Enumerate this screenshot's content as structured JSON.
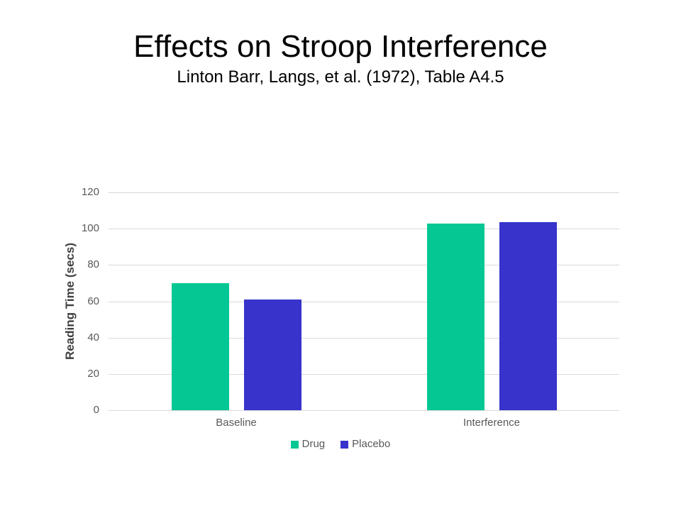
{
  "slide": {
    "title": "Effects on Stroop Interference",
    "subtitle": "Linton Barr, Langs, et al. (1972), Table A4.5"
  },
  "chart_data": {
    "type": "bar",
    "categories": [
      "Baseline",
      "Interference"
    ],
    "series": [
      {
        "name": "Drug",
        "color": "#05C793",
        "values": [
          70,
          103
        ]
      },
      {
        "name": "Placebo",
        "color": "#3733CB",
        "values": [
          61,
          103.5
        ]
      }
    ],
    "title": "Effects on Stroop Interference",
    "subtitle": "Linton Barr, Langs, et al. (1972), Table A4.5",
    "xlabel": "",
    "ylabel": "Reading Time (secs)",
    "ylim": [
      0,
      120
    ],
    "ytick_step": 20,
    "yticks": [
      0,
      20,
      40,
      60,
      80,
      100,
      120
    ],
    "grid": true,
    "legend_position": "bottom",
    "colors": {
      "gridline": "#D9D9D9",
      "tick_text": "#595959",
      "axis_title_text": "#404040",
      "title_text": "#000000"
    }
  }
}
